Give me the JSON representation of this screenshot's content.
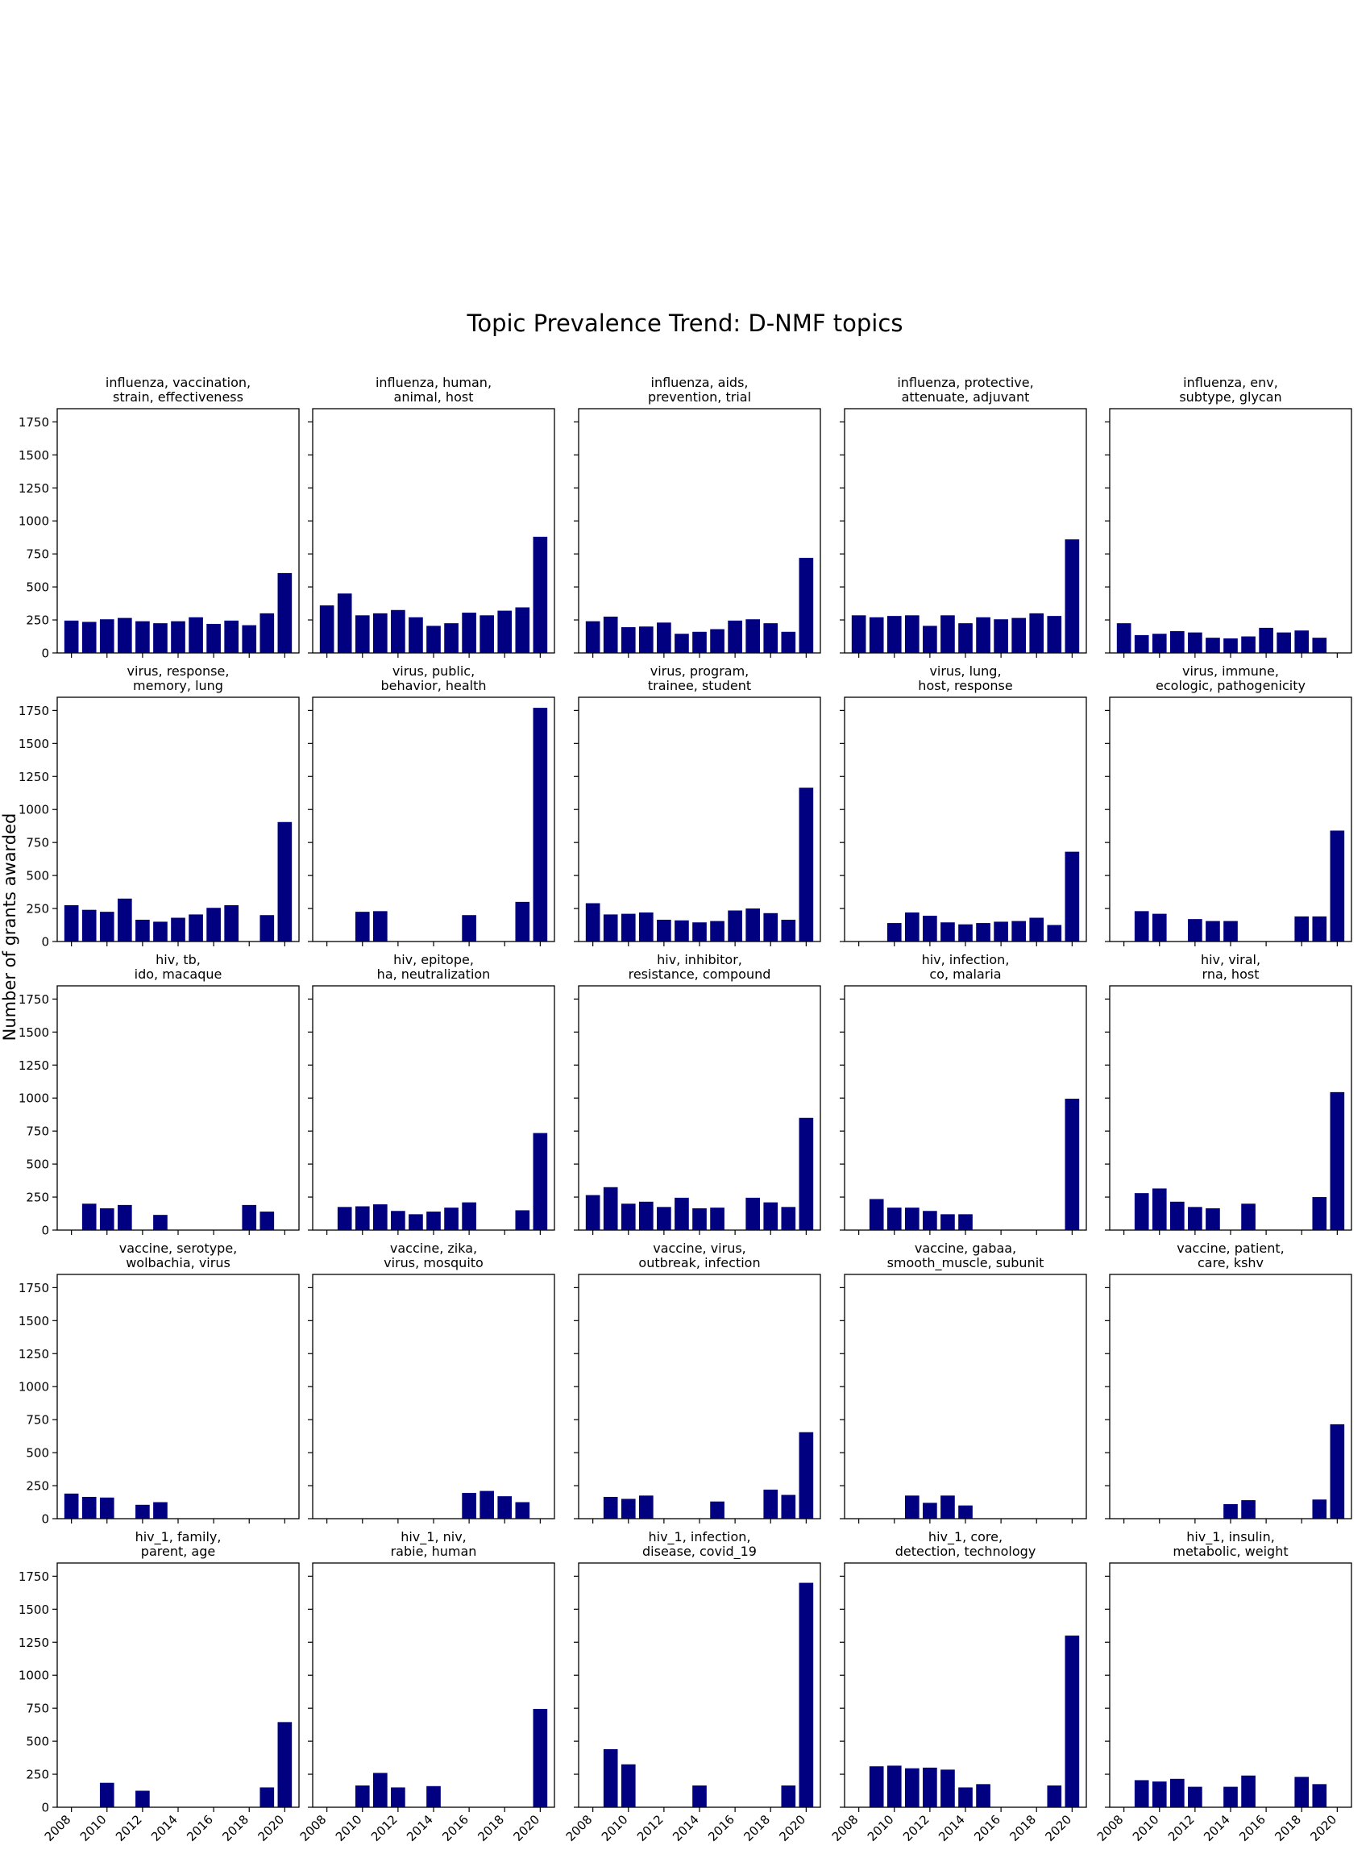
{
  "figure": {
    "suptitle": "Topic Prevalence Trend: D-NMF topics",
    "ylabel": "Number of grants awarded",
    "bar_color": "#000080"
  },
  "chart_data": {
    "type": "bar",
    "x": [
      2008,
      2009,
      2010,
      2011,
      2012,
      2013,
      2014,
      2015,
      2016,
      2017,
      2018,
      2019,
      2020
    ],
    "xticks": [
      "2008",
      "2010",
      "2012",
      "2014",
      "2016",
      "2018",
      "2020"
    ],
    "yticks": [
      "0",
      "250",
      "500",
      "750",
      "1000",
      "1250",
      "1500",
      "1750"
    ],
    "ylim": [
      0,
      1850
    ],
    "grid": false,
    "panels": [
      {
        "title": [
          "influenza, vaccination,",
          "strain, effectiveness"
        ],
        "values": [
          245,
          235,
          255,
          265,
          240,
          225,
          240,
          270,
          220,
          245,
          210,
          300,
          605
        ]
      },
      {
        "title": [
          "influenza, human,",
          "animal, host"
        ],
        "values": [
          360,
          450,
          285,
          300,
          325,
          270,
          205,
          225,
          305,
          285,
          320,
          345,
          880
        ]
      },
      {
        "title": [
          "influenza, aids,",
          "prevention, trial"
        ],
        "values": [
          240,
          275,
          195,
          200,
          230,
          145,
          160,
          180,
          245,
          255,
          225,
          160,
          720
        ]
      },
      {
        "title": [
          "influenza, protective,",
          "attenuate, adjuvant"
        ],
        "values": [
          285,
          270,
          280,
          285,
          205,
          285,
          225,
          270,
          255,
          265,
          300,
          280,
          860
        ]
      },
      {
        "title": [
          "influenza, env,",
          "subtype, glycan"
        ],
        "values": [
          225,
          135,
          145,
          165,
          155,
          115,
          110,
          125,
          190,
          155,
          170,
          115,
          null
        ]
      },
      {
        "title": [
          "virus, response,",
          "memory, lung"
        ],
        "values": [
          275,
          240,
          225,
          325,
          165,
          150,
          180,
          205,
          255,
          275,
          null,
          200,
          905
        ]
      },
      {
        "title": [
          "virus, public,",
          "behavior, health"
        ],
        "values": [
          null,
          null,
          225,
          230,
          null,
          null,
          null,
          null,
          200,
          null,
          null,
          300,
          1770
        ]
      },
      {
        "title": [
          "virus, program,",
          "trainee, student"
        ],
        "values": [
          290,
          205,
          210,
          220,
          165,
          160,
          145,
          155,
          235,
          250,
          215,
          165,
          1165
        ]
      },
      {
        "title": [
          "virus, lung,",
          "host, response"
        ],
        "values": [
          null,
          null,
          140,
          220,
          195,
          145,
          130,
          140,
          150,
          155,
          180,
          125,
          680
        ]
      },
      {
        "title": [
          "virus, immune,",
          "ecologic, pathogenicity"
        ],
        "values": [
          null,
          230,
          210,
          null,
          170,
          155,
          155,
          null,
          null,
          null,
          190,
          190,
          840
        ]
      },
      {
        "title": [
          "hiv, tb,",
          "ido, macaque"
        ],
        "values": [
          null,
          200,
          165,
          190,
          null,
          115,
          null,
          null,
          null,
          null,
          190,
          140,
          null
        ]
      },
      {
        "title": [
          "hiv, epitope,",
          "ha, neutralization"
        ],
        "values": [
          null,
          175,
          180,
          195,
          145,
          120,
          140,
          170,
          210,
          null,
          null,
          150,
          735
        ]
      },
      {
        "title": [
          "hiv, inhibitor,",
          "resistance, compound"
        ],
        "values": [
          265,
          325,
          200,
          215,
          175,
          245,
          165,
          170,
          null,
          245,
          210,
          175,
          850
        ]
      },
      {
        "title": [
          "hiv, infection,",
          "co, malaria"
        ],
        "values": [
          null,
          235,
          170,
          170,
          145,
          120,
          120,
          null,
          null,
          null,
          null,
          null,
          995
        ]
      },
      {
        "title": [
          "hiv, viral,",
          "rna, host"
        ],
        "values": [
          null,
          280,
          315,
          215,
          175,
          165,
          null,
          200,
          null,
          null,
          null,
          250,
          1045
        ]
      },
      {
        "title": [
          "vaccine, serotype,",
          "wolbachia, virus"
        ],
        "values": [
          190,
          165,
          160,
          null,
          105,
          125,
          null,
          null,
          null,
          null,
          null,
          null,
          null
        ]
      },
      {
        "title": [
          "vaccine, zika,",
          "virus, mosquito"
        ],
        "values": [
          null,
          null,
          null,
          null,
          null,
          null,
          null,
          null,
          195,
          210,
          170,
          125,
          null
        ]
      },
      {
        "title": [
          "vaccine, virus,",
          "outbreak, infection"
        ],
        "values": [
          null,
          165,
          150,
          175,
          null,
          null,
          null,
          130,
          null,
          null,
          220,
          180,
          655
        ]
      },
      {
        "title": [
          "vaccine, gabaa,",
          "smooth_muscle, subunit"
        ],
        "values": [
          null,
          null,
          null,
          175,
          120,
          175,
          100,
          null,
          null,
          null,
          null,
          null,
          null
        ]
      },
      {
        "title": [
          "vaccine, patient,",
          "care, kshv"
        ],
        "values": [
          null,
          null,
          null,
          null,
          null,
          null,
          110,
          140,
          null,
          null,
          null,
          145,
          715
        ]
      },
      {
        "title": [
          "hiv_1, family,",
          "parent, age"
        ],
        "values": [
          null,
          null,
          185,
          null,
          125,
          null,
          null,
          null,
          null,
          null,
          null,
          150,
          645
        ]
      },
      {
        "title": [
          "hiv_1, niv,",
          "rabie, human"
        ],
        "values": [
          null,
          null,
          165,
          260,
          150,
          null,
          160,
          null,
          null,
          null,
          null,
          null,
          745
        ]
      },
      {
        "title": [
          "hiv_1, infection,",
          "disease, covid_19"
        ],
        "values": [
          null,
          440,
          325,
          null,
          null,
          null,
          165,
          null,
          null,
          null,
          null,
          165,
          1700
        ]
      },
      {
        "title": [
          "hiv_1, core,",
          "detection, technology"
        ],
        "values": [
          null,
          310,
          315,
          295,
          300,
          285,
          150,
          175,
          null,
          null,
          null,
          165,
          1300
        ]
      },
      {
        "title": [
          "hiv_1, insulin,",
          "metabolic, weight"
        ],
        "values": [
          null,
          205,
          195,
          215,
          155,
          null,
          155,
          240,
          null,
          null,
          230,
          175,
          null
        ]
      }
    ]
  }
}
